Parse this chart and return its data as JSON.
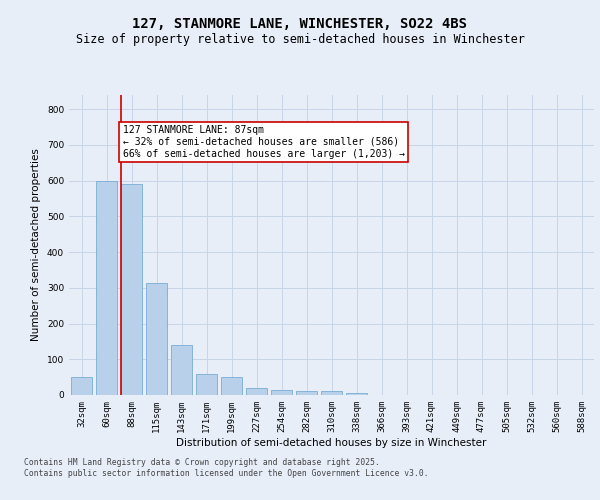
{
  "title": "127, STANMORE LANE, WINCHESTER, SO22 4BS",
  "subtitle": "Size of property relative to semi-detached houses in Winchester",
  "xlabel": "Distribution of semi-detached houses by size in Winchester",
  "ylabel": "Number of semi-detached properties",
  "categories": [
    "32sqm",
    "60sqm",
    "88sqm",
    "115sqm",
    "143sqm",
    "171sqm",
    "199sqm",
    "227sqm",
    "254sqm",
    "282sqm",
    "310sqm",
    "338sqm",
    "366sqm",
    "393sqm",
    "421sqm",
    "449sqm",
    "477sqm",
    "505sqm",
    "532sqm",
    "560sqm",
    "588sqm"
  ],
  "values": [
    50,
    600,
    590,
    315,
    140,
    60,
    50,
    20,
    15,
    10,
    10,
    5,
    0,
    0,
    0,
    0,
    0,
    0,
    0,
    0,
    0
  ],
  "bar_color": "#b8d0ea",
  "bar_edge_color": "#7aadd4",
  "grid_color": "#c8d4e8",
  "background_color": "#e8eef8",
  "vline_color": "#cc0000",
  "vline_index": 2,
  "annotation_text": "127 STANMORE LANE: 87sqm\n← 32% of semi-detached houses are smaller (586)\n66% of semi-detached houses are larger (1,203) →",
  "annotation_box_color": "#ffffff",
  "annotation_box_edge": "#cc0000",
  "ylim": [
    0,
    840
  ],
  "yticks": [
    0,
    100,
    200,
    300,
    400,
    500,
    600,
    700,
    800
  ],
  "title_fontsize": 10,
  "subtitle_fontsize": 8.5,
  "axis_label_fontsize": 7.5,
  "tick_fontsize": 6.5,
  "annotation_fontsize": 7,
  "footer_fontsize": 5.8,
  "footer_text": "Contains HM Land Registry data © Crown copyright and database right 2025.\nContains public sector information licensed under the Open Government Licence v3.0."
}
